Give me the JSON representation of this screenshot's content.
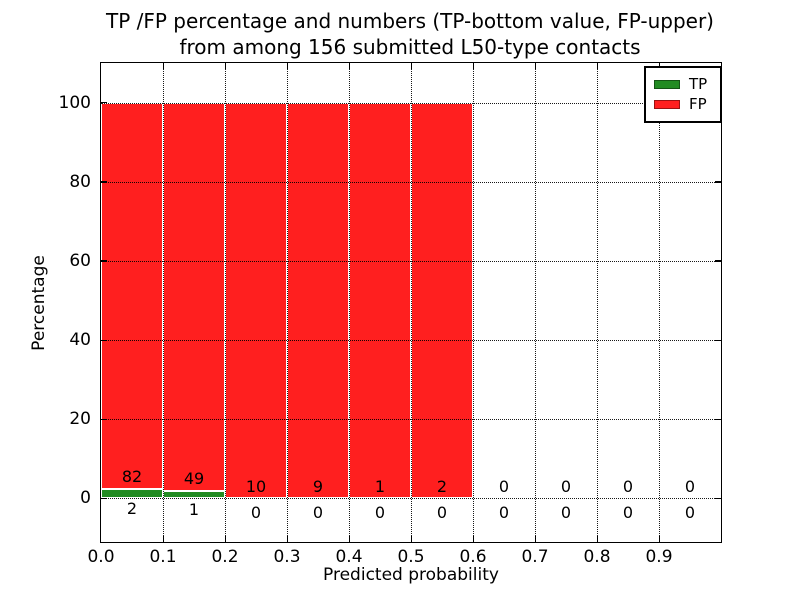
{
  "title": {
    "line1": "TP /FP percentage and numbers (TP-bottom value, FP-upper)",
    "line2": "from among 156 submitted L50-type contacts"
  },
  "axes": {
    "xlabel": "Predicted probability",
    "ylabel": "Percentage",
    "xtick_labels": [
      "0.0",
      "0.1",
      "0.2",
      "0.3",
      "0.4",
      "0.5",
      "0.6",
      "0.7",
      "0.8",
      "0.9"
    ],
    "ytick_labels": [
      "0",
      "20",
      "40",
      "60",
      "80",
      "100"
    ]
  },
  "legend": {
    "items": [
      {
        "label": "TP",
        "color": "#228b22"
      },
      {
        "label": "FP",
        "color": "#ff1f1f"
      }
    ],
    "position": "upper right"
  },
  "chart_data": {
    "type": "bar",
    "stacked": true,
    "normalized_to_percent": true,
    "title": "TP /FP percentage and numbers (TP-bottom value, FP-upper) from among 156 submitted L50-type contacts",
    "xlabel": "Predicted probability",
    "ylabel": "Percentage",
    "xlim": [
      0.0,
      1.0
    ],
    "ylim": [
      -11,
      110
    ],
    "grid": "dotted major gridlines, ticks inward on all four spines",
    "legend_position": "upper right",
    "bin_edges": [
      0.0,
      0.1,
      0.2,
      0.3,
      0.4,
      0.5,
      0.6,
      0.7,
      0.8,
      0.9,
      1.0
    ],
    "bin_centers": [
      0.05,
      0.15,
      0.25,
      0.35,
      0.45,
      0.55,
      0.65,
      0.75,
      0.85,
      0.95
    ],
    "total_submitted": 156,
    "series": [
      {
        "name": "TP",
        "color": "#228b22",
        "counts": [
          2,
          1,
          0,
          0,
          0,
          0,
          0,
          0,
          0,
          0
        ],
        "percent": [
          2.381,
          2.0,
          0,
          0,
          0,
          0,
          0,
          0,
          0,
          0
        ]
      },
      {
        "name": "FP",
        "color": "#ff1f1f",
        "counts": [
          82,
          49,
          10,
          9,
          1,
          2,
          0,
          0,
          0,
          0
        ],
        "percent": [
          97.619,
          98.0,
          100,
          100,
          100,
          100,
          0,
          0,
          0,
          0
        ]
      }
    ]
  }
}
